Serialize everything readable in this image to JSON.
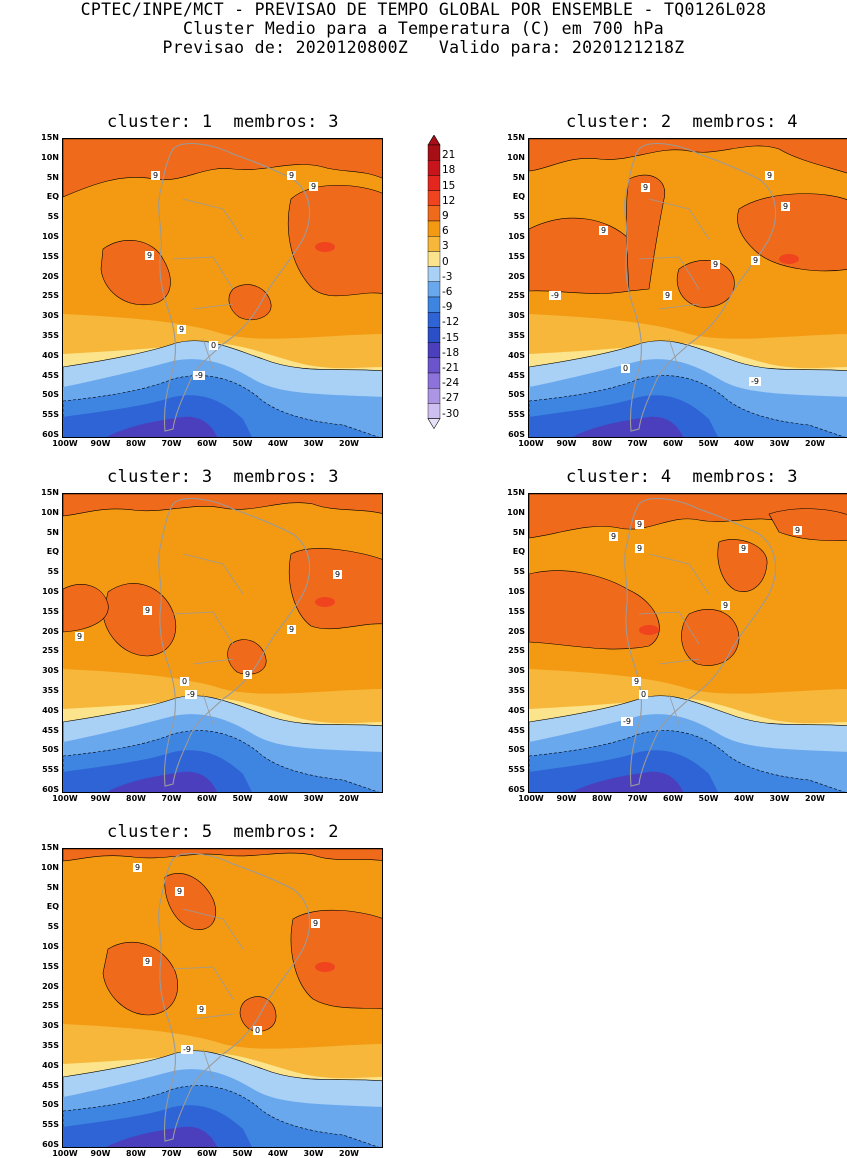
{
  "header": {
    "line1": "CPTEC/INPE/MCT - PREVISAO DE TEMPO GLOBAL POR ENSEMBLE - TQ0126L028",
    "line2": "Cluster Medio para a Temperatura (C) em 700 hPa",
    "line3": "Previsao de: 2020120800Z   Valido para: 2020121218Z"
  },
  "axes": {
    "lat_labels": [
      "15N",
      "10N",
      "5N",
      "EQ",
      "5S",
      "10S",
      "15S",
      "20S",
      "25S",
      "30S",
      "35S",
      "40S",
      "45S",
      "50S",
      "55S",
      "60S"
    ],
    "lon_labels": [
      "100W",
      "90W",
      "80W",
      "70W",
      "60W",
      "50W",
      "40W",
      "30W",
      "20W"
    ]
  },
  "colorbar": {
    "labels": [
      "21",
      "18",
      "15",
      "12",
      "9",
      "6",
      "3",
      "0",
      "-3",
      "-6",
      "-9",
      "-12",
      "-15",
      "-18",
      "-21",
      "-24",
      "-27",
      "-30"
    ],
    "colors": [
      "#a50f15",
      "#c8141b",
      "#e3261e",
      "#f0441f",
      "#f06a1c",
      "#f39a12",
      "#f7b73a",
      "#fbe48c",
      "#a9d0f5",
      "#6aa8ee",
      "#3d85e0",
      "#2e64d6",
      "#2a4fc7",
      "#4b3fbd",
      "#6c55cc",
      "#8d72db",
      "#ad95e6",
      "#cdbff0",
      "#e8e2f8"
    ]
  },
  "maps": [
    {
      "title": "cluster: 1  membros: 3",
      "labels": [
        "9",
        "9",
        "9",
        "9",
        "9",
        "0",
        "-9"
      ]
    },
    {
      "title": "cluster: 2  membros: 4",
      "labels": [
        "9",
        "9",
        "9",
        "9",
        "9",
        "9",
        "9",
        "-9",
        "0",
        "-9"
      ]
    },
    {
      "title": "cluster: 3  membros: 3",
      "labels": [
        "9",
        "9",
        "9",
        "9",
        "9",
        "0",
        "-9"
      ]
    },
    {
      "title": "cluster: 4  membros: 3",
      "labels": [
        "9",
        "9",
        "9",
        "9",
        "9",
        "9",
        "9",
        "0",
        "-9"
      ]
    },
    {
      "title": "cluster: 5  membros: 2",
      "labels": [
        "9",
        "9",
        "9",
        "9",
        "9",
        "0",
        "-9"
      ]
    }
  ]
}
